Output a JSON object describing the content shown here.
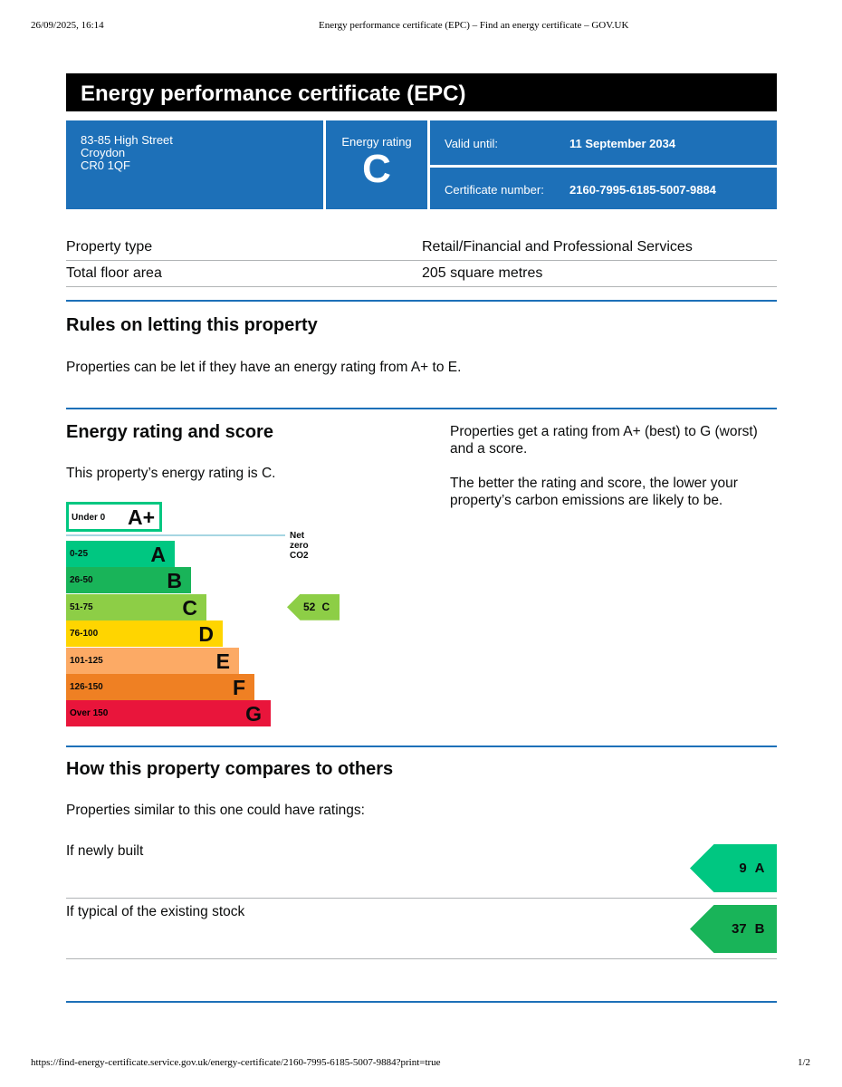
{
  "print_header": {
    "datetime": "26/09/2025, 16:14",
    "page_title": "Energy performance certificate (EPC) – Find an energy certificate – GOV.UK"
  },
  "print_footer": {
    "url": "https://find-energy-certificate.service.gov.uk/energy-certificate/2160-7995-6185-5007-9884?print=true",
    "page": "1/2"
  },
  "title": "Energy performance certificate (EPC)",
  "address": {
    "line1": "83-85 High Street",
    "line2": "Croydon",
    "line3": "CR0 1QF"
  },
  "energy_rating": {
    "label": "Energy rating",
    "value": "C"
  },
  "valid_until": {
    "label": "Valid until:",
    "value": "11 September 2034"
  },
  "certificate_number": {
    "label": "Certificate number:",
    "value": "2160-7995-6185-5007-9884"
  },
  "property": [
    {
      "label": "Property type",
      "value": "Retail/Financial and Professional Services"
    },
    {
      "label": "Total floor area",
      "value": "205 square metres"
    }
  ],
  "rules": {
    "heading": "Rules on letting this property",
    "text": "Properties can be let if they have an energy rating from A+ to E."
  },
  "rating_section": {
    "heading": "Energy rating and score",
    "text": "This property’s energy rating is C.",
    "side_text_1": "Properties get a rating from A+ (best) to G (worst) and a score.",
    "side_text_2": "The better the rating and score, the lower your property’s carbon emissions are likely to be."
  },
  "compare": {
    "heading": "How this property compares to others",
    "text": "Properties similar to this one could have ratings:",
    "rows": [
      {
        "label": "If newly built",
        "score": "9",
        "band": "A",
        "color": "#00c781"
      },
      {
        "label": "If typical of the existing stock",
        "score": "37",
        "band": "B",
        "color": "#19b459"
      }
    ]
  },
  "chart_data": {
    "type": "bar",
    "aplus": {
      "range": "Under 0",
      "band": "A+",
      "color": "#00c781"
    },
    "net_zero_label": "Net zero CO2",
    "bands": [
      {
        "range": "0-25",
        "band": "A",
        "color": "#00c781"
      },
      {
        "range": "26-50",
        "band": "B",
        "color": "#19b459"
      },
      {
        "range": "51-75",
        "band": "C",
        "color": "#8dce46"
      },
      {
        "range": "76-100",
        "band": "D",
        "color": "#ffd500"
      },
      {
        "range": "101-125",
        "band": "E",
        "color": "#fcaa65"
      },
      {
        "range": "126-150",
        "band": "F",
        "color": "#ef8023"
      },
      {
        "range": "Over 150",
        "band": "G",
        "color": "#e9153b"
      }
    ],
    "current": {
      "score": "52",
      "band": "C",
      "color": "#8dce46"
    }
  }
}
